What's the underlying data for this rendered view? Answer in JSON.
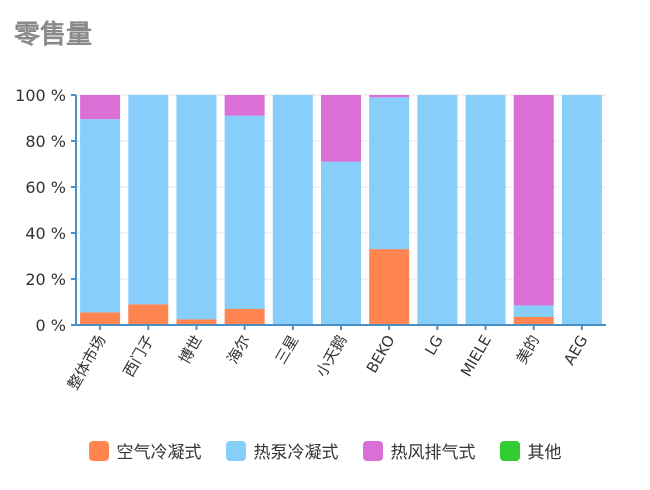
{
  "title": "零售量",
  "chart_data": {
    "type": "bar",
    "stacked": true,
    "title": "零售量",
    "categories": [
      "整体市场",
      "西门子",
      "博世",
      "海尔",
      "三星",
      "小天鹅",
      "BEKO",
      "LG",
      "MIELE",
      "美的",
      "AEG"
    ],
    "series": [
      {
        "name": "空气冷凝式",
        "color": "#ff8450",
        "values": [
          5.5,
          9,
          2.5,
          7,
          0,
          0,
          33,
          0,
          0,
          3.5,
          0
        ]
      },
      {
        "name": "热泵冷凝式",
        "color": "#87cefa",
        "values": [
          84,
          91,
          97.5,
          84,
          100,
          71,
          66,
          100,
          100,
          5,
          100
        ]
      },
      {
        "name": "热风排气式",
        "color": "#da70d6",
        "values": [
          10.5,
          0,
          0,
          9,
          0,
          29,
          1,
          0,
          0,
          91.5,
          0
        ]
      },
      {
        "name": "其他",
        "color": "#32cd32",
        "values": [
          0,
          0,
          0,
          0,
          0,
          0,
          0,
          0,
          0,
          0,
          0
        ]
      }
    ],
    "ylim": [
      0,
      100
    ],
    "yticks": [
      "0 %",
      "20 %",
      "40 %",
      "60 %",
      "80 %",
      "100 %"
    ],
    "grid": true,
    "legend_position": "bottom",
    "axis_color": "#4a90c8"
  }
}
